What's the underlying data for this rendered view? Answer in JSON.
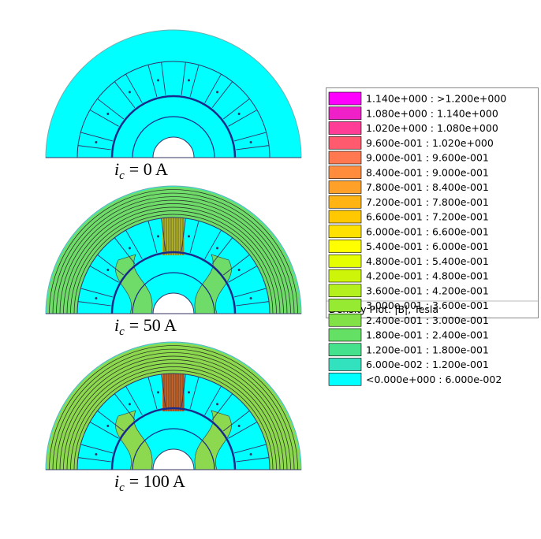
{
  "plots": [
    {
      "caption": {
        "symbol": "i",
        "subscript": "c",
        "equation": "= 0 A"
      }
    },
    {
      "caption": {
        "symbol": "i",
        "subscript": "c",
        "equation": "= 50 A"
      }
    },
    {
      "caption": {
        "symbol": "i",
        "subscript": "c",
        "equation": "= 100 A"
      }
    }
  ],
  "legend": {
    "entries": [
      {
        "label": "1.140e+000 : >1.200e+000",
        "color": "#ff00ff"
      },
      {
        "label": "1.080e+000 : 1.140e+000",
        "color": "#f020c8"
      },
      {
        "label": "1.020e+000 : 1.080e+000",
        "color": "#ff3c96"
      },
      {
        "label": "9.600e-001 : 1.020e+000",
        "color": "#ff5a6e"
      },
      {
        "label": "9.000e-001 : 9.600e-001",
        "color": "#ff7850"
      },
      {
        "label": "8.400e-001 : 9.000e-001",
        "color": "#ff8c3c"
      },
      {
        "label": "7.800e-001 : 8.400e-001",
        "color": "#ffa028"
      },
      {
        "label": "7.200e-001 : 7.800e-001",
        "color": "#ffb414"
      },
      {
        "label": "6.600e-001 : 7.200e-001",
        "color": "#ffc800"
      },
      {
        "label": "6.000e-001 : 6.600e-001",
        "color": "#ffe100"
      },
      {
        "label": "5.400e-001 : 6.000e-001",
        "color": "#ffff00"
      },
      {
        "label": "4.800e-001 : 5.400e-001",
        "color": "#e6ff00"
      },
      {
        "label": "4.200e-001 : 4.800e-001",
        "color": "#cdf50a"
      },
      {
        "label": "3.600e-001 : 4.200e-001",
        "color": "#b4f01e"
      },
      {
        "label": "3.000e-001 : 3.600e-001",
        "color": "#96eb32"
      },
      {
        "label": "2.400e-001 : 3.000e-001",
        "color": "#82e146"
      },
      {
        "label": "1.800e-001 : 2.400e-001",
        "color": "#64e164"
      },
      {
        "label": "1.200e-001 : 1.800e-001",
        "color": "#46e18c"
      },
      {
        "label": "6.000e-002 : 1.200e-001",
        "color": "#32e1be"
      },
      {
        "label": "<0.000e+000 : 6.000e-002",
        "color": "#00ffff"
      }
    ],
    "footer": "Density Plot: |B|, Tesla"
  }
}
